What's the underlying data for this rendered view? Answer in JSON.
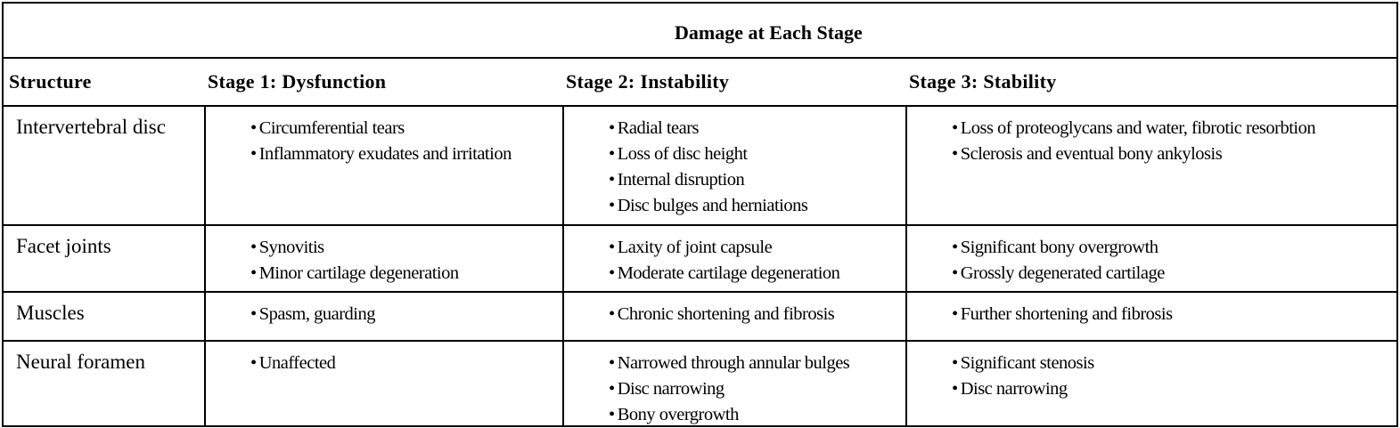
{
  "title": "Damage at Each Stage",
  "headers": [
    "Structure",
    "Stage 1: Dysfunction",
    "Stage 2: Instability",
    "Stage 3: Stability"
  ],
  "rows": [
    {
      "structure": "Intervertebral disc",
      "stage1": [
        "Circumferential tears",
        "Inflammatory exudates and irritation"
      ],
      "stage2": [
        "Radial tears",
        "Loss of disc height",
        "Internal disruption",
        "Disc bulges and herniations"
      ],
      "stage3": [
        "Loss of proteoglycans and water, fibrotic resorbtion",
        "Sclerosis and eventual bony ankylosis"
      ]
    },
    {
      "structure": "Facet joints",
      "stage1": [
        "Synovitis",
        "Minor cartilage degeneration"
      ],
      "stage2": [
        "Laxity of joint capsule",
        "Moderate cartilage degeneration"
      ],
      "stage3": [
        "Significant bony overgrowth",
        "Grossly degenerated cartilage"
      ]
    },
    {
      "structure": "Muscles",
      "stage1": [
        "Spasm, guarding"
      ],
      "stage2": [
        "Chronic shortening and fibrosis"
      ],
      "stage3": [
        "Further shortening and fibrosis"
      ]
    },
    {
      "structure": "Neural foramen",
      "stage1": [
        "Unaffected"
      ],
      "stage2": [
        "Narrowed through annular bulges",
        "Disc narrowing",
        "Bony overgrowth"
      ],
      "stage3": [
        "Significant stenosis",
        "Disc narrowing"
      ]
    }
  ]
}
